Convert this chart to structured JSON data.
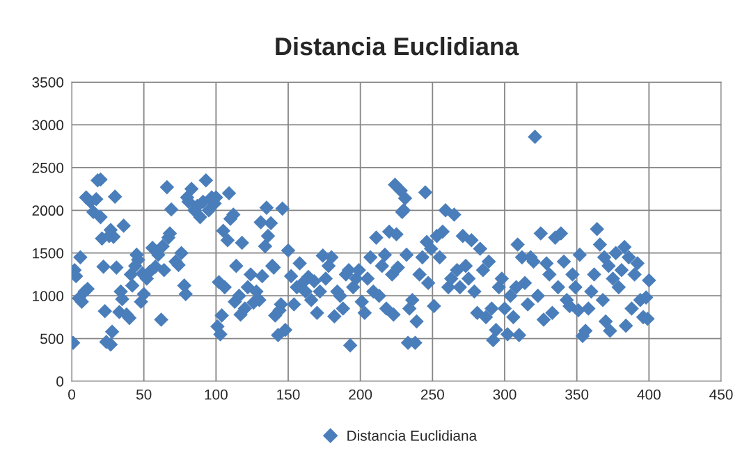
{
  "chart_data": {
    "type": "scatter",
    "title": "Distancia Euclidiana",
    "xlim": [
      0,
      450
    ],
    "xticks": [
      0,
      50,
      100,
      150,
      200,
      250,
      300,
      350,
      400,
      450
    ],
    "ylim": [
      0,
      3500
    ],
    "yticks": [
      0,
      500,
      1000,
      1500,
      2000,
      2500,
      3000,
      3500
    ],
    "grid": true,
    "legend": "bottom",
    "marker": "diamond",
    "series": [
      {
        "name": "Distancia Euclidiana",
        "color": "#4a7ebb",
        "x": [
          1,
          2,
          3,
          5,
          6,
          7,
          9,
          10,
          11,
          13,
          15,
          17,
          18,
          20,
          20,
          21,
          22,
          23,
          24,
          26,
          27,
          27,
          28,
          29,
          30,
          31,
          33,
          34,
          35,
          36,
          38,
          40,
          41,
          42,
          44,
          45,
          46,
          48,
          49,
          50,
          52,
          54,
          56,
          58,
          60,
          62,
          63,
          64,
          66,
          67,
          68,
          69,
          72,
          74,
          76,
          78,
          79,
          80,
          81,
          83,
          85,
          87,
          89,
          91,
          93,
          95,
          97,
          99,
          100,
          101,
          102,
          103,
          104,
          105,
          106,
          108,
          109,
          110,
          112,
          113,
          114,
          116,
          117,
          118,
          120,
          122,
          124,
          126,
          128,
          130,
          131,
          132,
          134,
          135,
          136,
          138,
          139,
          140,
          141,
          143,
          144,
          145,
          146,
          148,
          150,
          152,
          154,
          156,
          158,
          160,
          162,
          164,
          166,
          168,
          170,
          172,
          174,
          176,
          178,
          180,
          182,
          184,
          186,
          188,
          190,
          192,
          193,
          195,
          197,
          199,
          201,
          203,
          205,
          207,
          209,
          211,
          213,
          215,
          217,
          218,
          220,
          222,
          223,
          224,
          225,
          226,
          228,
          229,
          230,
          231,
          232,
          233,
          234,
          236,
          238,
          239,
          241,
          243,
          245,
          246,
          247,
          249,
          251,
          253,
          255,
          257,
          259,
          261,
          263,
          265,
          267,
          269,
          271,
          273,
          275,
          277,
          279,
          281,
          283,
          285,
          287,
          289,
          291,
          292,
          294,
          296,
          298,
          300,
          302,
          304,
          306,
          308,
          309,
          310,
          312,
          314,
          316,
          318,
          320,
          321,
          323,
          325,
          327,
          329,
          331,
          333,
          335,
          337,
          339,
          341,
          343,
          345,
          347,
          349,
          351,
          352,
          354,
          356,
          358,
          360,
          362,
          364,
          366,
          368,
          369,
          370,
          372,
          373,
          375,
          377,
          379,
          381,
          383,
          384,
          386,
          388,
          390,
          392,
          394,
          396,
          398,
          399,
          400
        ],
        "values": [
          450,
          1300,
          1230,
          970,
          1450,
          930,
          1050,
          2150,
          1080,
          2100,
          1980,
          2130,
          2350,
          2360,
          1920,
          1670,
          1340,
          820,
          460,
          1700,
          1770,
          430,
          580,
          1690,
          2160,
          1330,
          810,
          1050,
          960,
          1820,
          780,
          740,
          1250,
          1120,
          1350,
          1480,
          1420,
          930,
          1260,
          1020,
          1200,
          1280,
          1560,
          1340,
          1480,
          720,
          1580,
          1300,
          2270,
          1680,
          1730,
          2010,
          1400,
          1360,
          1500,
          1120,
          1020,
          2150,
          2100,
          2250,
          2000,
          2050,
          1920,
          2100,
          2350,
          2000,
          2150,
          2080,
          2150,
          640,
          1160,
          550,
          770,
          1760,
          1100,
          1650,
          2200,
          1900,
          1950,
          930,
          1350,
          1000,
          780,
          1620,
          850,
          1100,
          1250,
          920,
          1050,
          950,
          1860,
          1230,
          1580,
          2030,
          1700,
          1850,
          1350,
          1330,
          770,
          540,
          830,
          900,
          2020,
          600,
          1530,
          1230,
          900,
          1100,
          1380,
          1150,
          1050,
          1220,
          950,
          1170,
          800,
          1050,
          1470,
          1200,
          1350,
          1450,
          760,
          1050,
          1000,
          850,
          1250,
          1300,
          420,
          1100,
          1200,
          1300,
          930,
          800,
          1200,
          1450,
          1050,
          1680,
          1000,
          1350,
          1480,
          850,
          1750,
          1250,
          780,
          2300,
          1720,
          1330,
          2230,
          1980,
          2000,
          2140,
          1480,
          450,
          850,
          950,
          450,
          700,
          1250,
          1450,
          2210,
          1630,
          1150,
          1550,
          880,
          1700,
          1450,
          1750,
          2000,
          1100,
          1200,
          1950,
          1300,
          1100,
          1700,
          1350,
          1200,
          1650,
          1050,
          800,
          1550,
          1300,
          750,
          1400,
          850,
          480,
          600,
          1100,
          1200,
          850,
          550,
          1000,
          750,
          1100,
          1600,
          540,
          1450,
          1150,
          900,
          1450,
          1400,
          2860,
          1000,
          1730,
          720,
          1380,
          1250,
          800,
          1680,
          1100,
          1730,
          1400,
          950,
          880,
          1250,
          1100,
          830,
          1480,
          530,
          590,
          850,
          1050,
          1250,
          1780,
          1600,
          950,
          1450,
          700,
          1350,
          590,
          1200,
          1500,
          1100,
          1300,
          1570,
          650,
          1450,
          850,
          1250,
          1380,
          950,
          750,
          980,
          730,
          1180
        ]
      }
    ]
  }
}
